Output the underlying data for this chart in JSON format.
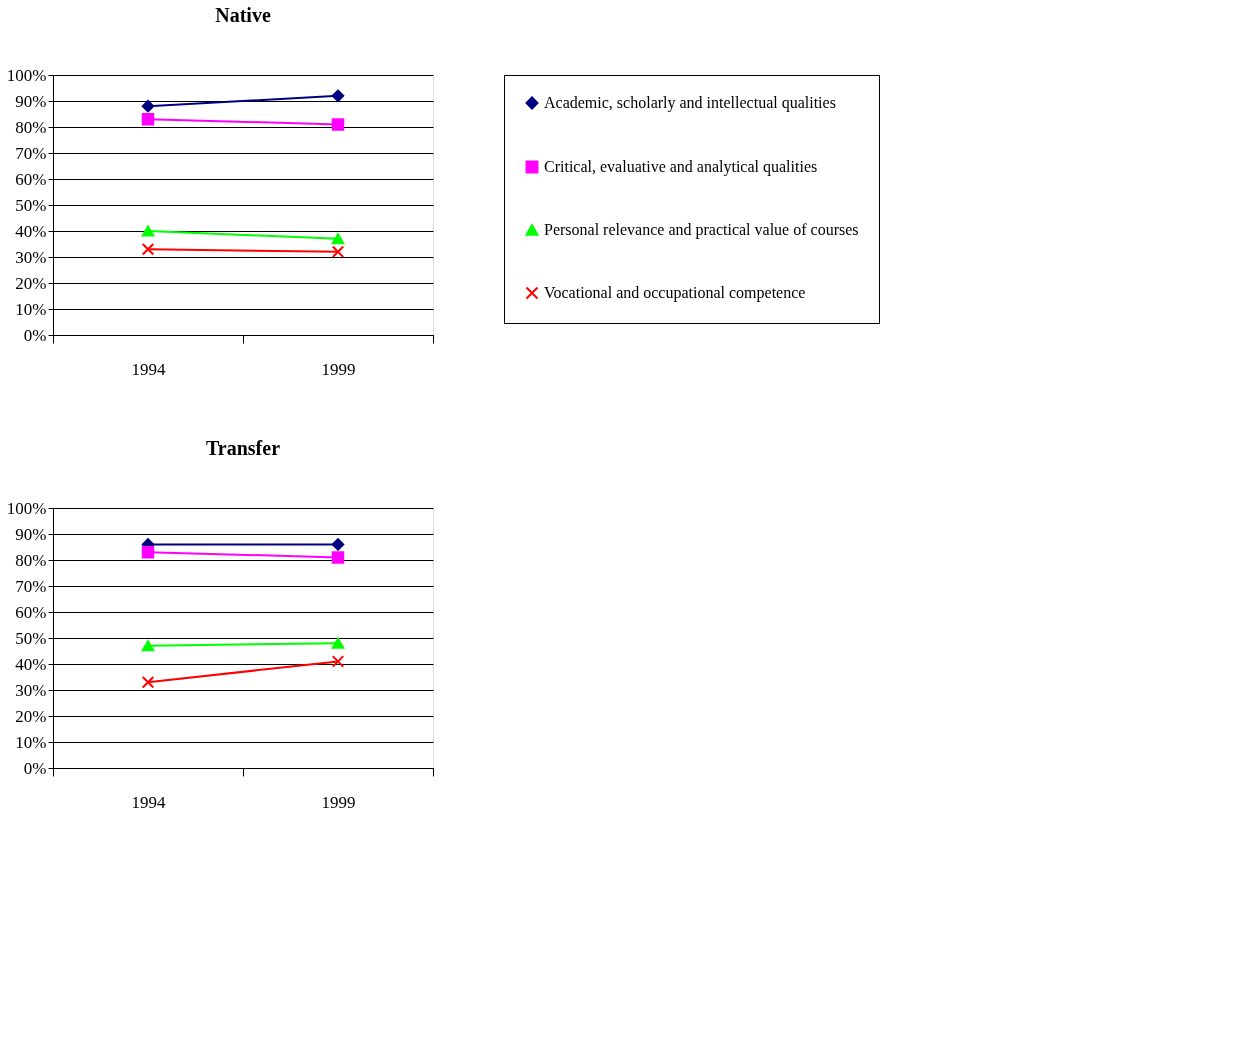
{
  "chart_data": [
    {
      "type": "line",
      "title": "Native",
      "categories": [
        "1994",
        "1999"
      ],
      "series": [
        {
          "name": "Academic, scholarly and intellectual qualities",
          "color": "#000080",
          "marker": "diamond",
          "values": [
            88,
            92
          ]
        },
        {
          "name": "Critical, evaluative and analytical qualities",
          "color": "#ff00ff",
          "marker": "square",
          "values": [
            83,
            81
          ]
        },
        {
          "name": "Personal relevance and practical value of courses",
          "color": "#00ff00",
          "marker": "triangle",
          "values": [
            40,
            37
          ]
        },
        {
          "name": "Vocational and occupational competence",
          "color": "#ff0000",
          "marker": "cross",
          "values": [
            33,
            32
          ]
        }
      ],
      "ylim": [
        0,
        100
      ],
      "yticks": [
        {
          "value": 0,
          "label": "0%"
        },
        {
          "value": 10,
          "label": "10%"
        },
        {
          "value": 20,
          "label": "20%"
        },
        {
          "value": 30,
          "label": "30%"
        },
        {
          "value": 40,
          "label": "40%"
        },
        {
          "value": 50,
          "label": "50%"
        },
        {
          "value": 60,
          "label": "60%"
        },
        {
          "value": 70,
          "label": "70%"
        },
        {
          "value": 80,
          "label": "80%"
        },
        {
          "value": 90,
          "label": "90%"
        },
        {
          "value": 100,
          "label": "100%"
        }
      ],
      "grid": "y",
      "legend": "right"
    },
    {
      "type": "line",
      "title": "Transfer",
      "categories": [
        "1994",
        "1999"
      ],
      "series": [
        {
          "name": "Academic, scholarly and intellectual qualities",
          "color": "#000080",
          "marker": "diamond",
          "values": [
            86,
            86
          ]
        },
        {
          "name": "Critical, evaluative and analytical qualities",
          "color": "#ff00ff",
          "marker": "square",
          "values": [
            83,
            81
          ]
        },
        {
          "name": "Personal relevance and practical value of courses",
          "color": "#00ff00",
          "marker": "triangle",
          "values": [
            47,
            48
          ]
        },
        {
          "name": "Vocational and occupational competence",
          "color": "#ff0000",
          "marker": "cross",
          "values": [
            33,
            41
          ]
        }
      ],
      "ylim": [
        0,
        100
      ],
      "yticks": [
        {
          "value": 0,
          "label": "0%"
        },
        {
          "value": 10,
          "label": "10%"
        },
        {
          "value": 20,
          "label": "20%"
        },
        {
          "value": 30,
          "label": "30%"
        },
        {
          "value": 40,
          "label": "40%"
        },
        {
          "value": 50,
          "label": "50%"
        },
        {
          "value": 60,
          "label": "60%"
        },
        {
          "value": 70,
          "label": "70%"
        },
        {
          "value": 80,
          "label": "80%"
        },
        {
          "value": 90,
          "label": "90%"
        },
        {
          "value": 100,
          "label": "100%"
        }
      ],
      "grid": "y",
      "legend": false
    }
  ]
}
